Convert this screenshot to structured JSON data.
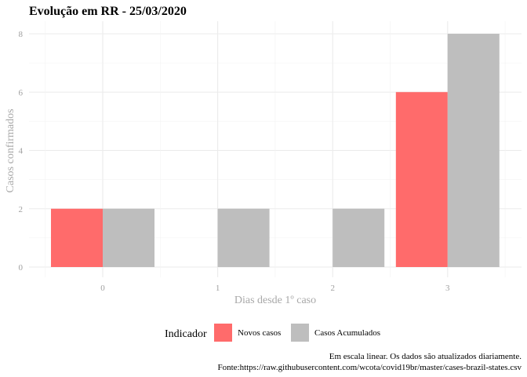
{
  "chart_data": {
    "type": "bar",
    "title": "Evolução em RR  -  25/03/2020",
    "xlabel": "Dias desde 1º caso",
    "ylabel": "Casos confirmados",
    "categories": [
      "0",
      "1",
      "2",
      "3"
    ],
    "x": [
      0,
      1,
      2,
      3
    ],
    "yticks": [
      "0",
      "2",
      "4",
      "6",
      "8"
    ],
    "ylim": [
      0,
      8
    ],
    "grid": true,
    "legend": {
      "title": "Indicador",
      "position": "bottom"
    },
    "series": [
      {
        "name": "Novos casos",
        "color": "#ff6b6b",
        "values": [
          2,
          0,
          0,
          6
        ]
      },
      {
        "name": "Casos Acumulados",
        "color": "#bebebe",
        "values": [
          2,
          2,
          2,
          8
        ]
      }
    ],
    "caption": [
      "Em escala linear. Os dados são atualizados diariamente.",
      "Fonte:https://raw.githubusercontent.com/wcota/covid19br/master/cases-brazil-states.csv"
    ]
  }
}
